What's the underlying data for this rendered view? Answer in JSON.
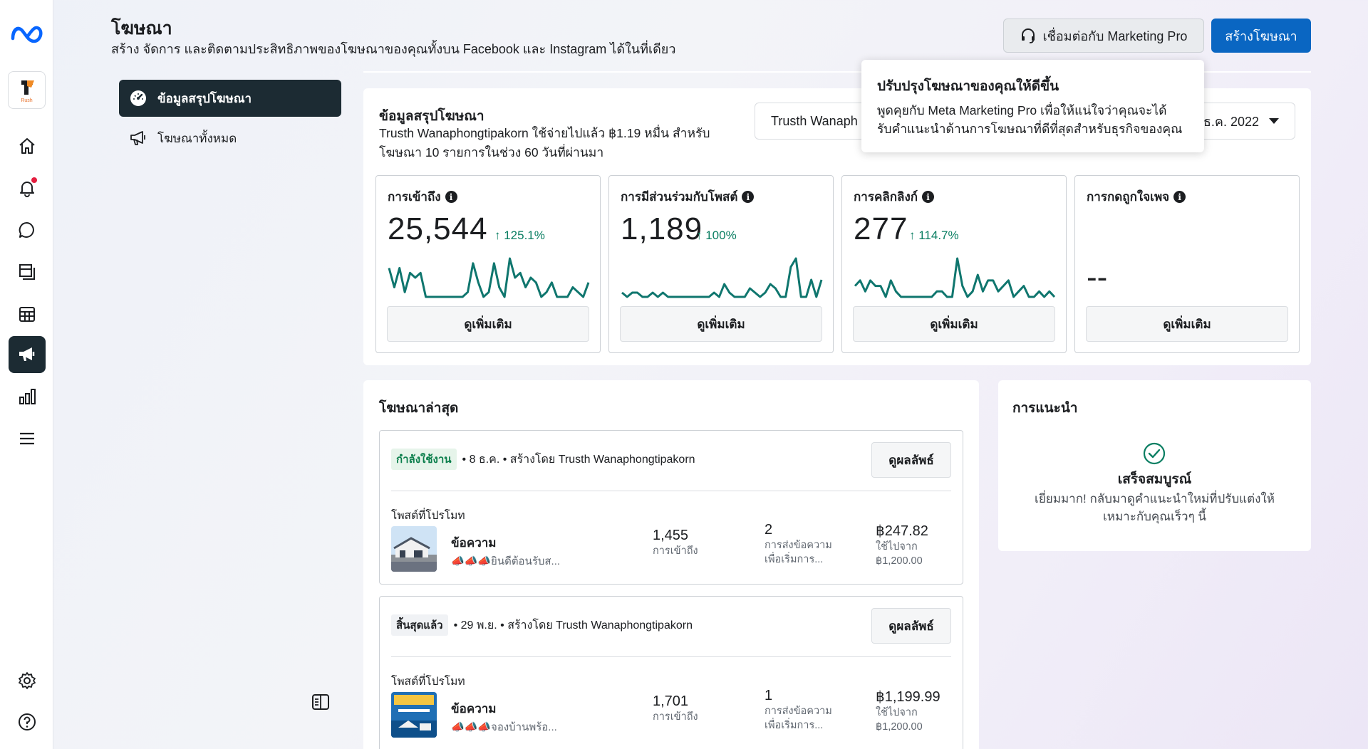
{
  "header": {
    "title": "โฆษณา",
    "subtitle": "สร้าง จัดการ และติดตามประสิทธิภาพของโฆษณาของคุณทั้งบน Facebook และ Instagram ได้ในที่เดียว",
    "pro_button": "เชื่อมต่อกับ Marketing Pro",
    "create_button": "สร้างโฆษณา"
  },
  "brand_tile": {
    "text": "Rush"
  },
  "rail_icons": [
    "meta-logo-icon",
    "home-icon",
    "bell-icon",
    "chat-icon",
    "pages-icon",
    "table-icon",
    "megaphone-icon",
    "bar-chart-icon",
    "menu-icon",
    "gear-icon",
    "help-icon"
  ],
  "colors": {
    "accent": "#0a66c2",
    "active_nav": "#1c2b33",
    "positive": "#0a7e62",
    "spark": "#0f766e"
  },
  "sidenav": {
    "items": [
      {
        "label": "ข้อมูลสรุปโฆษณา",
        "active": true
      },
      {
        "label": "โฆษณาทั้งหมด",
        "active": false
      }
    ]
  },
  "summary": {
    "title": "ข้อมูลสรุปโฆษณา",
    "description": "Trusth Wanaphongtipakorn ใช้จ่ายไปแล้ว ฿1.19 หมื่น สำหรับโฆษณา 10 รายการในช่วง 60 วันที่ผ่านมา",
    "account_select": "Trusth Wanaph",
    "date_select": "ธ.ค. 2022",
    "metrics": [
      {
        "label": "การเข้าถึง",
        "value": "25,544",
        "change": "↑ 125.1%",
        "button": "ดูเพิ่มเติม",
        "series": [
          6,
          2,
          6,
          1,
          5,
          4,
          5,
          0,
          0,
          0,
          0,
          0,
          0,
          0,
          0,
          1,
          7,
          3,
          0,
          1,
          7,
          2,
          0,
          8,
          4,
          5,
          2,
          4,
          3,
          0,
          1,
          3,
          0,
          0,
          0,
          2,
          1,
          0,
          3
        ]
      },
      {
        "label": "การมีส่วนร่วมกับโพสต์",
        "value": "1,189",
        "change": "↑ 100%",
        "button": "ดูเพิ่มเติม",
        "series": [
          1,
          0,
          1,
          1,
          0,
          0,
          1,
          0,
          1,
          0,
          0,
          0,
          0,
          0,
          0,
          0,
          0,
          0,
          1,
          0,
          3,
          1,
          0,
          0,
          0,
          2,
          1,
          0,
          1,
          3,
          2,
          0,
          0,
          7,
          9,
          0,
          0,
          4,
          0,
          4
        ]
      },
      {
        "label": "การคลิกลิงก์",
        "value": "277",
        "change": "↑ 114.7%",
        "button": "ดูเพิ่มเติม",
        "series": [
          2,
          3,
          1,
          3,
          2,
          2,
          0,
          3,
          1,
          0,
          0,
          0,
          0,
          0,
          0,
          0,
          1,
          1,
          0,
          0,
          7,
          2,
          0,
          1,
          4,
          1,
          3,
          3,
          1,
          2,
          3,
          0,
          1,
          2,
          0,
          0,
          1,
          0,
          1,
          0
        ]
      },
      {
        "label": "การกดถูกใจเพจ",
        "value": "--",
        "change": "",
        "button": "ดูเพิ่มเติม",
        "series": []
      }
    ]
  },
  "tooltip": {
    "title": "ปรับปรุงโฆษณาของคุณให้ดีขึ้น",
    "body": "พูดคุยกับ Meta Marketing Pro เพื่อให้แน่ใจว่าคุณจะได้รับคำแนะนำด้านการโฆษณาที่ดีที่สุดสำหรับธุรกิจของคุณ"
  },
  "recent_ads": {
    "title": "โฆษณาล่าสุด",
    "ads": [
      {
        "status": "กำลังใช้งาน",
        "meta": "• 8 ธ.ค. • สร้างโดย Trusth Wanaphongtipakorn",
        "button": "ดูผลลัพธ์",
        "promo_label": "โพสต์ที่โปรโมท",
        "name": "ข้อความ",
        "caption": "📣📣📣ยินดีต้อนรับส...",
        "reach_value": "1,455",
        "reach_label": "การเข้าถึง",
        "msg_value": "2",
        "msg_label_1": "การส่งข้อความ",
        "msg_label_2": "เพื่อเริ่มการ...",
        "spent_value": "฿247.82",
        "spent_label": "ใช้ไปจาก",
        "budget": "฿1,200.00"
      },
      {
        "status": "สิ้นสุดแล้ว",
        "meta": "• 29 พ.ย. • สร้างโดย Trusth Wanaphongtipakorn",
        "button": "ดูผลลัพธ์",
        "promo_label": "โพสต์ที่โปรโมท",
        "name": "ข้อความ",
        "caption": "📣📣📣จองบ้านพร้อ...",
        "reach_value": "1,701",
        "reach_label": "การเข้าถึง",
        "msg_value": "1",
        "msg_label_1": "การส่งข้อความ",
        "msg_label_2": "เพื่อเริ่มการ...",
        "spent_value": "฿1,199.99",
        "spent_label": "ใช้ไปจาก",
        "budget": "฿1,200.00"
      }
    ]
  },
  "recommendations": {
    "title": "การแนะนำ",
    "done": "เสร็จสมบูรณ์",
    "text": "เยี่ยมมาก! กลับมาดูคำแนะนำใหม่ที่ปรับแต่งให้เหมาะกับคุณเร็วๆ นี้"
  }
}
